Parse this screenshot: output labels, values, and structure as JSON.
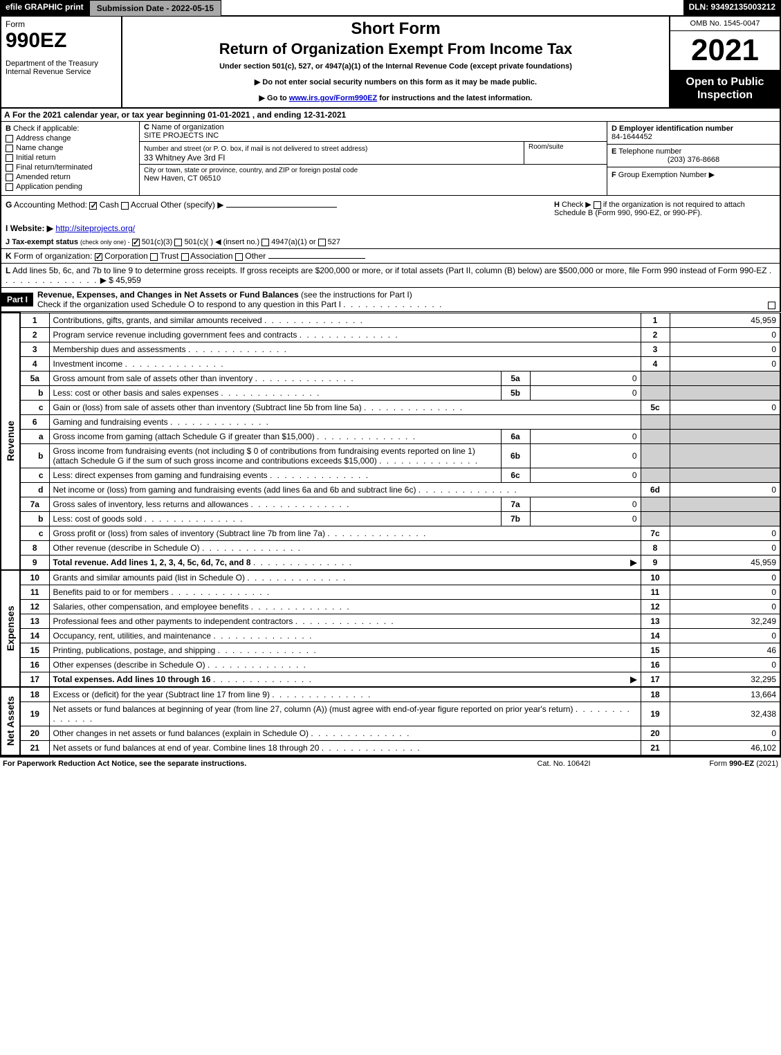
{
  "colors": {
    "black": "#000000",
    "white": "#ffffff",
    "gray_btn": "#a8a8a8",
    "shade": "#d0d0d0",
    "link": "#0000cc"
  },
  "top": {
    "efile": "efile GRAPHIC print",
    "submission": "Submission Date - 2022-05-15",
    "dln": "DLN: 93492135003212"
  },
  "header": {
    "form_word": "Form",
    "form_num": "990EZ",
    "dept": "Department of the Treasury\nInternal Revenue Service",
    "short_form": "Short Form",
    "title": "Return of Organization Exempt From Income Tax",
    "subtitle": "Under section 501(c), 527, or 4947(a)(1) of the Internal Revenue Code (except private foundations)",
    "instr1": "▶ Do not enter social security numbers on this form as it may be made public.",
    "instr2_pre": "▶ Go to ",
    "instr2_link": "www.irs.gov/Form990EZ",
    "instr2_post": " for instructions and the latest information.",
    "omb": "OMB No. 1545-0047",
    "year": "2021",
    "open": "Open to Public Inspection"
  },
  "row_a": {
    "label": "A",
    "text": "For the 2021 calendar year, or tax year beginning 01-01-2021 , and ending 12-31-2021"
  },
  "box_b": {
    "label": "B",
    "heading": "Check if applicable:",
    "items": [
      {
        "text": "Address change",
        "checked": false
      },
      {
        "text": "Name change",
        "checked": false
      },
      {
        "text": "Initial return",
        "checked": false
      },
      {
        "text": "Final return/terminated",
        "checked": false
      },
      {
        "text": "Amended return",
        "checked": false
      },
      {
        "text": "Application pending",
        "checked": false
      }
    ]
  },
  "box_c": {
    "label": "C",
    "name_label": "Name of organization",
    "name": "SITE PROJECTS INC",
    "street_label": "Number and street (or P. O. box, if mail is not delivered to street address)",
    "street": "33 Whitney Ave 3rd Fl",
    "room_label": "Room/suite",
    "city_label": "City or town, state or province, country, and ZIP or foreign postal code",
    "city": "New Haven, CT  06510"
  },
  "box_d": {
    "label": "D",
    "heading": "Employer identification number",
    "value": "84-1644452"
  },
  "box_e": {
    "label": "E",
    "heading": "Telephone number",
    "value": "(203) 376-8668"
  },
  "box_f": {
    "label": "F",
    "heading": "Group Exemption Number",
    "arrow": "▶"
  },
  "row_g": {
    "label": "G",
    "heading": "Accounting Method:",
    "options": [
      {
        "text": "Cash",
        "checked": true
      },
      {
        "text": "Accrual",
        "checked": false
      }
    ],
    "other": "Other (specify) ▶"
  },
  "row_h": {
    "label": "H",
    "text": "Check ▶",
    "post": "if the organization is not required to attach Schedule B (Form 990, 990-EZ, or 990-PF)."
  },
  "row_i": {
    "label": "I",
    "heading": "Website: ▶",
    "link": "http://siteprojects.org/"
  },
  "row_j": {
    "label": "J",
    "heading": "Tax-exempt status",
    "note": "(check only one) -",
    "options": [
      {
        "text": "501(c)(3)",
        "checked": true
      },
      {
        "text": "501(c)( )",
        "checked": false
      },
      {
        "text_pre": "◀ (insert no.)",
        "text": "4947(a)(1) or",
        "checked": false
      },
      {
        "text": "527",
        "checked": false
      }
    ]
  },
  "row_k": {
    "label": "K",
    "heading": "Form of organization:",
    "options": [
      {
        "text": "Corporation",
        "checked": true
      },
      {
        "text": "Trust",
        "checked": false
      },
      {
        "text": "Association",
        "checked": false
      },
      {
        "text": "Other",
        "checked": false
      }
    ]
  },
  "row_l": {
    "label": "L",
    "text": "Add lines 5b, 6c, and 7b to line 9 to determine gross receipts. If gross receipts are $200,000 or more, or if total assets (Part II, column (B) below) are $500,000 or more, file Form 990 instead of Form 990-EZ",
    "amount": "$ 45,959"
  },
  "part1": {
    "tab": "Part I",
    "title": "Revenue, Expenses, and Changes in Net Assets or Fund Balances",
    "subtitle": "(see the instructions for Part I)",
    "check_line": "Check if the organization used Schedule O to respond to any question in this Part I"
  },
  "revenue": {
    "label": "Revenue",
    "rows": [
      {
        "no": "1",
        "desc": "Contributions, gifts, grants, and similar amounts received",
        "resno": "1",
        "resval": "45,959"
      },
      {
        "no": "2",
        "desc": "Program service revenue including government fees and contracts",
        "resno": "2",
        "resval": "0"
      },
      {
        "no": "3",
        "desc": "Membership dues and assessments",
        "resno": "3",
        "resval": "0"
      },
      {
        "no": "4",
        "desc": "Investment income",
        "resno": "4",
        "resval": "0"
      },
      {
        "no": "5a",
        "desc": "Gross amount from sale of assets other than inventory",
        "sub": "5a",
        "subval": "0",
        "shade_res": true
      },
      {
        "no": "b",
        "desc": "Less: cost or other basis and sales expenses",
        "sub": "5b",
        "subval": "0",
        "shade_res": true
      },
      {
        "no": "c",
        "desc": "Gain or (loss) from sale of assets other than inventory (Subtract line 5b from line 5a)",
        "resno": "5c",
        "resval": "0"
      },
      {
        "no": "6",
        "desc": "Gaming and fundraising events",
        "shade_res": true,
        "no_res": true
      },
      {
        "no": "a",
        "desc": "Gross income from gaming (attach Schedule G if greater than $15,000)",
        "sub": "6a",
        "subval": "0",
        "shade_res": true
      },
      {
        "no": "b",
        "desc": "Gross income from fundraising events (not including $  0            of contributions from fundraising events reported on line 1) (attach Schedule G if the sum of such gross income and contributions exceeds $15,000)",
        "sub": "6b",
        "subval": "0",
        "shade_res": true
      },
      {
        "no": "c",
        "desc": "Less: direct expenses from gaming and fundraising events",
        "sub": "6c",
        "subval": "0",
        "shade_res": true
      },
      {
        "no": "d",
        "desc": "Net income or (loss) from gaming and fundraising events (add lines 6a and 6b and subtract line 6c)",
        "resno": "6d",
        "resval": "0"
      },
      {
        "no": "7a",
        "desc": "Gross sales of inventory, less returns and allowances",
        "sub": "7a",
        "subval": "0",
        "shade_res": true
      },
      {
        "no": "b",
        "desc": "Less: cost of goods sold",
        "sub": "7b",
        "subval": "0",
        "shade_res": true
      },
      {
        "no": "c",
        "desc": "Gross profit or (loss) from sales of inventory (Subtract line 7b from line 7a)",
        "resno": "7c",
        "resval": "0"
      },
      {
        "no": "8",
        "desc": "Other revenue (describe in Schedule O)",
        "resno": "8",
        "resval": "0"
      },
      {
        "no": "9",
        "desc": "Total revenue. Add lines 1, 2, 3, 4, 5c, 6d, 7c, and 8",
        "arrow": true,
        "resno": "9",
        "resval": "45,959",
        "bold": true,
        "thick": true
      }
    ]
  },
  "expenses": {
    "label": "Expenses",
    "rows": [
      {
        "no": "10",
        "desc": "Grants and similar amounts paid (list in Schedule O)",
        "resno": "10",
        "resval": "0"
      },
      {
        "no": "11",
        "desc": "Benefits paid to or for members",
        "resno": "11",
        "resval": "0"
      },
      {
        "no": "12",
        "desc": "Salaries, other compensation, and employee benefits",
        "resno": "12",
        "resval": "0"
      },
      {
        "no": "13",
        "desc": "Professional fees and other payments to independent contractors",
        "resno": "13",
        "resval": "32,249"
      },
      {
        "no": "14",
        "desc": "Occupancy, rent, utilities, and maintenance",
        "resno": "14",
        "resval": "0"
      },
      {
        "no": "15",
        "desc": "Printing, publications, postage, and shipping",
        "resno": "15",
        "resval": "46"
      },
      {
        "no": "16",
        "desc": "Other expenses (describe in Schedule O)",
        "resno": "16",
        "resval": "0"
      },
      {
        "no": "17",
        "desc": "Total expenses. Add lines 10 through 16",
        "arrow": true,
        "resno": "17",
        "resval": "32,295",
        "bold": true,
        "thick": true
      }
    ]
  },
  "netassets": {
    "label": "Net Assets",
    "rows": [
      {
        "no": "18",
        "desc": "Excess or (deficit) for the year (Subtract line 17 from line 9)",
        "resno": "18",
        "resval": "13,664"
      },
      {
        "no": "19",
        "desc": "Net assets or fund balances at beginning of year (from line 27, column (A)) (must agree with end-of-year figure reported on prior year's return)",
        "resno": "19",
        "resval": "32,438"
      },
      {
        "no": "20",
        "desc": "Other changes in net assets or fund balances (explain in Schedule O)",
        "resno": "20",
        "resval": "0"
      },
      {
        "no": "21",
        "desc": "Net assets or fund balances at end of year. Combine lines 18 through 20",
        "resno": "21",
        "resval": "46,102",
        "thick": true
      }
    ]
  },
  "footer": {
    "left": "For Paperwork Reduction Act Notice, see the separate instructions.",
    "center": "Cat. No. 10642I",
    "right_pre": "Form ",
    "right_bold": "990-EZ",
    "right_post": " (2021)"
  }
}
